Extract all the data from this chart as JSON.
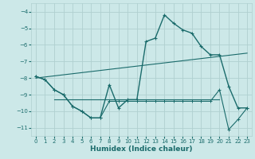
{
  "title": "",
  "xlabel": "Humidex (Indice chaleur)",
  "ylabel": "",
  "bg_color": "#cce8e8",
  "line_color": "#1a6b6b",
  "grid_color": "#b0d0d0",
  "xlim": [
    -0.5,
    23.5
  ],
  "ylim": [
    -11.5,
    -3.5
  ],
  "yticks": [
    -4,
    -5,
    -6,
    -7,
    -8,
    -9,
    -10,
    -11
  ],
  "xticks": [
    0,
    1,
    2,
    3,
    4,
    5,
    6,
    7,
    8,
    9,
    10,
    11,
    12,
    13,
    14,
    15,
    16,
    17,
    18,
    19,
    20,
    21,
    22,
    23
  ],
  "series": {
    "main": {
      "x": [
        0,
        1,
        2,
        3,
        4,
        5,
        6,
        7,
        8,
        9,
        10,
        11,
        12,
        13,
        14,
        15,
        16,
        17,
        18,
        19,
        20,
        21,
        22,
        23
      ],
      "y": [
        -7.9,
        -8.1,
        -8.7,
        -9.0,
        -9.7,
        -10.0,
        -10.4,
        -10.4,
        -8.4,
        -9.8,
        -9.3,
        -9.3,
        -5.8,
        -5.6,
        -4.2,
        -4.7,
        -5.1,
        -5.3,
        -6.1,
        -6.6,
        -6.6,
        -8.5,
        -9.8,
        -9.8
      ]
    },
    "upper": {
      "x": [
        0,
        23
      ],
      "y": [
        -8.0,
        -6.5
      ]
    },
    "lower_flat": {
      "x": [
        2,
        20
      ],
      "y": [
        -9.3,
        -9.3
      ]
    },
    "lower_main": {
      "x": [
        0,
        1,
        2,
        3,
        4,
        5,
        6,
        7,
        8,
        9,
        10,
        11,
        12,
        13,
        14,
        15,
        16,
        17,
        18,
        19,
        20,
        21,
        22,
        23
      ],
      "y": [
        -7.9,
        -8.1,
        -8.7,
        -9.0,
        -9.7,
        -10.0,
        -10.4,
        -10.4,
        -9.4,
        -9.4,
        -9.4,
        -9.4,
        -9.4,
        -9.4,
        -9.4,
        -9.4,
        -9.4,
        -9.4,
        -9.4,
        -9.4,
        -8.7,
        -11.1,
        -10.5,
        -9.8
      ]
    }
  }
}
